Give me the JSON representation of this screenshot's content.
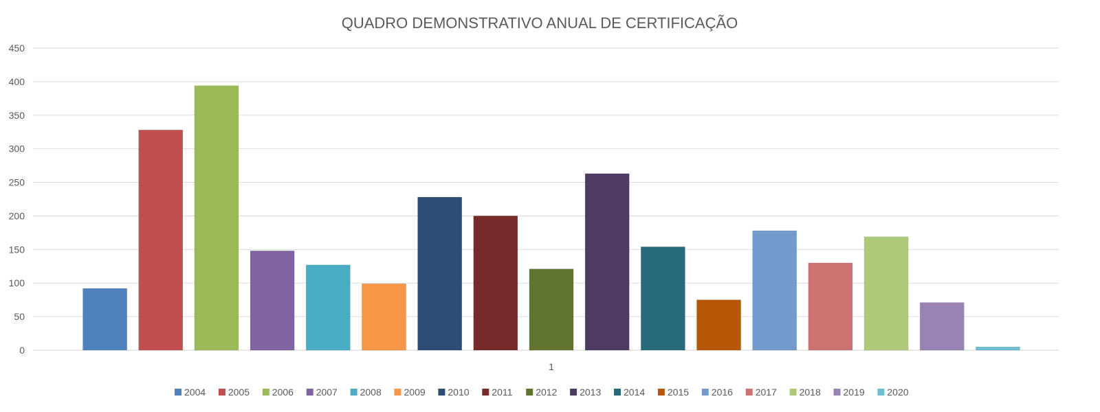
{
  "chart_data": {
    "type": "bar",
    "title": "QUADRO DEMONSTRATIVO ANUAL DE CERTIFICAÇÃO",
    "xlabel": "",
    "ylabel": "",
    "categories": [
      "1"
    ],
    "ylim": [
      0,
      450
    ],
    "yticks": [
      0,
      50,
      100,
      150,
      200,
      250,
      300,
      350,
      400,
      450
    ],
    "grid": true,
    "legend_position": "bottom",
    "series": [
      {
        "name": "2004",
        "values": [
          92
        ],
        "color": "#4F81BD"
      },
      {
        "name": "2005",
        "values": [
          328
        ],
        "color": "#C0504D"
      },
      {
        "name": "2006",
        "values": [
          394
        ],
        "color": "#9BBB59"
      },
      {
        "name": "2007",
        "values": [
          148
        ],
        "color": "#8064A2"
      },
      {
        "name": "2008",
        "values": [
          127
        ],
        "color": "#4BACC6"
      },
      {
        "name": "2009",
        "values": [
          99
        ],
        "color": "#F79646"
      },
      {
        "name": "2010",
        "values": [
          228
        ],
        "color": "#2C4D75"
      },
      {
        "name": "2011",
        "values": [
          200
        ],
        "color": "#772C2A"
      },
      {
        "name": "2012",
        "values": [
          121
        ],
        "color": "#5F7530"
      },
      {
        "name": "2013",
        "values": [
          263
        ],
        "color": "#4D3B62"
      },
      {
        "name": "2014",
        "values": [
          154
        ],
        "color": "#276A7C"
      },
      {
        "name": "2015",
        "values": [
          75
        ],
        "color": "#B65708"
      },
      {
        "name": "2016",
        "values": [
          178
        ],
        "color": "#729ACA"
      },
      {
        "name": "2017",
        "values": [
          130
        ],
        "color": "#CD7371"
      },
      {
        "name": "2018",
        "values": [
          169
        ],
        "color": "#AFC97A"
      },
      {
        "name": "2019",
        "values": [
          71
        ],
        "color": "#9983B5"
      },
      {
        "name": "2020",
        "values": [
          5
        ],
        "color": "#6FBDD1"
      }
    ]
  }
}
